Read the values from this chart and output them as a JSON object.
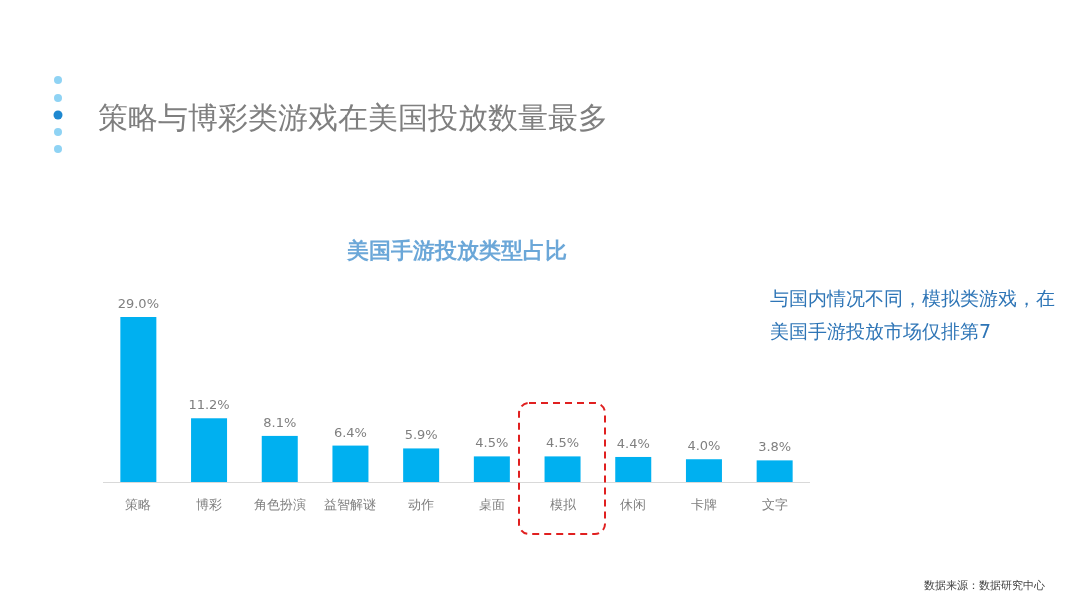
{
  "chart_data": {
    "type": "bar",
    "title": "策略与博彩类游戏在美国投放数量最多",
    "subtitle": "美国手游投放类型占比",
    "categories": [
      "策略",
      "博彩",
      "角色扮演",
      "益智解谜",
      "动作",
      "桌面",
      "模拟",
      "休闲",
      "卡牌",
      "文字"
    ],
    "values": [
      29.0,
      11.2,
      8.1,
      6.4,
      5.9,
      4.5,
      4.5,
      4.4,
      4.0,
      3.8
    ],
    "value_labels": [
      "29.0%",
      "11.2%",
      "8.1%",
      "6.4%",
      "5.9%",
      "4.5%",
      "4.5%",
      "4.4%",
      "4.0%",
      "3.8%"
    ],
    "color": "#00b0f0",
    "annotations": [
      "与国内情况不同，模拟类游戏，在美国手游投放市场仅排第7",
      "数据来源：数据研究中心"
    ]
  }
}
